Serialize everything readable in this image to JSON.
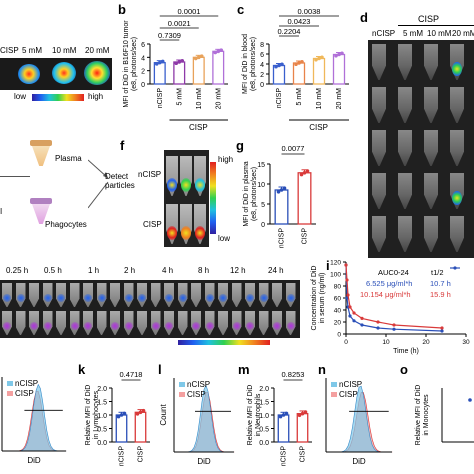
{
  "panels": {
    "b": "b",
    "c": "c",
    "d": "d",
    "f": "f",
    "g": "g",
    "i": "i",
    "k": "k",
    "l": "l",
    "m": "m",
    "n": "n",
    "o": "o"
  },
  "panel_a": {
    "labels": [
      "CISP",
      "5 mM",
      "10 mM",
      "20 mM"
    ],
    "colorbar_low": "low",
    "colorbar_high": "high"
  },
  "panel_b": {
    "ylabel_line1": "MFI of DiD in B16F10 tumor",
    "ylabel_line2": "(e8, photons/sec)",
    "group_label": "CISP",
    "pvalues": [
      "0.0001",
      "0.0021",
      "0.7309"
    ],
    "yticks": [
      "0",
      "2",
      "4",
      "6"
    ]
  },
  "panel_c": {
    "ylabel_line1": "MFI of DiD in blood",
    "ylabel_line2": "(e8, photons/sec)",
    "group_label": "CISP",
    "pvalues": [
      "0.0038",
      "0.0423",
      "0.2204"
    ],
    "yticks": [
      "0",
      "2",
      "4",
      "6",
      "8"
    ]
  },
  "panel_d": {
    "header": "CISP",
    "labels": [
      "nCISP",
      "5 mM",
      "10 mM",
      "20 mM"
    ]
  },
  "panel_e": {
    "steps": [
      "Plasma",
      "Phagocytes",
      "Detect particles"
    ]
  },
  "panel_f": {
    "rows": [
      "nCISP",
      "CISP"
    ],
    "colorbar_high": "high",
    "colorbar_low": "low"
  },
  "panel_g": {
    "ylabel_line1": "MFI of DiD in plasma",
    "ylabel_line2": "(e8, photons/sec)",
    "pvalue": "0.0077",
    "yticks": [
      "0",
      "5",
      "10",
      "15"
    ]
  },
  "panel_h": {
    "timepoints": [
      "0.25 h",
      "0.5 h",
      "1 h",
      "2 h",
      "4 h",
      "8 h",
      "12 h",
      "24 h"
    ]
  },
  "panel_i": {
    "ylabel_line1": "Concentration of DiD",
    "ylabel_line2": "in serum (ng/ml)",
    "xlabel": "Time (h)",
    "auc_header": "AUC0-24",
    "thalf_header": "t1/2",
    "auc_blue": "6.525 μg/ml*h",
    "thalf_blue": "10.7 h",
    "auc_red": "10.154 μg/ml*h",
    "thalf_red": "15.9 h",
    "yticks": [
      "0",
      "20",
      "40",
      "60",
      "80",
      "100",
      "120"
    ],
    "xticks": [
      "0",
      "10",
      "20",
      "30"
    ]
  },
  "chart_data": [
    {
      "type": "bar",
      "categories": [
        "nCISP",
        "5 mM",
        "10 mM",
        "20 mM"
      ],
      "values": [
        3.2,
        3.3,
        4.0,
        4.9
      ],
      "ylim": [
        0,
        6
      ],
      "colors": [
        "#3a5fcd",
        "#8e3aa8",
        "#e8a25a",
        "#b070d8"
      ]
    },
    {
      "type": "bar",
      "categories": [
        "nCISP",
        "5 mM",
        "10 mM",
        "20 mM"
      ],
      "values": [
        3.7,
        4.2,
        5.1,
        5.9
      ],
      "ylim": [
        0,
        8
      ],
      "colors": [
        "#3a5fcd",
        "#e8844a",
        "#f0b85a",
        "#b070d8"
      ]
    },
    {
      "type": "bar",
      "categories": [
        "nCISP",
        "CISP"
      ],
      "values": [
        8.5,
        12.8
      ],
      "ylim": [
        0,
        15
      ],
      "colors": [
        "#2a4fb8",
        "#d93a3a"
      ]
    },
    {
      "type": "line",
      "x": [
        0,
        0.25,
        0.5,
        1,
        2,
        4,
        8,
        12,
        24
      ],
      "series": [
        {
          "values": [
            115,
            60,
            45,
            30,
            22,
            15,
            10,
            8,
            5
          ],
          "color": "#2a4fb8"
        },
        {
          "values": [
            115,
            90,
            65,
            45,
            35,
            26,
            20,
            15,
            10
          ],
          "color": "#d93a3a"
        }
      ],
      "ylim": [
        0,
        120
      ],
      "xlim": [
        0,
        30
      ]
    },
    {
      "type": "bar",
      "categories": [
        "nCISP",
        "CISP"
      ],
      "values": [
        1.0,
        1.1
      ],
      "ylim": [
        0,
        2.0
      ],
      "colors": [
        "#2a4fb8",
        "#d93a3a"
      ]
    },
    {
      "type": "bar",
      "categories": [
        "nCISP",
        "CISP"
      ],
      "values": [
        1.0,
        1.05
      ],
      "ylim": [
        0,
        2.0
      ],
      "colors": [
        "#2a4fb8",
        "#d93a3a"
      ]
    }
  ],
  "panel_k": {
    "ylabel_line1": "Relative MFI of DiD",
    "ylabel_line2": "in Lymphocytes",
    "pvalue": "0.4718",
    "yticks": [
      "0.0",
      "0.5",
      "1.0",
      "1.5",
      "2.0"
    ]
  },
  "panel_l": {
    "ylabel": "Count",
    "xlabel": "DiD",
    "legend": [
      "nCISP",
      "CISP"
    ]
  },
  "panel_j": {
    "legend": [
      "nCISP",
      "CISP"
    ],
    "xlabel": "DiD"
  },
  "panel_m": {
    "ylabel_line1": "Relative MFI of DiD",
    "ylabel_line2": "in Neutrophils",
    "pvalue": "0.8253",
    "yticks": [
      "0.0",
      "0.5",
      "1.0",
      "1.5",
      "2.0"
    ]
  },
  "panel_n": {
    "legend": [
      "nCISP",
      "CISP"
    ],
    "xlabel": "DiD"
  },
  "panel_o": {
    "ylabel_line1": "Relative MFI of DiD",
    "ylabel_line2": "in Monocytes"
  },
  "colors": {
    "blue": "#2a4fb8",
    "red": "#d93a3a",
    "hist_blue": "#7fc8e8",
    "hist_red": "#f4a0a0"
  }
}
